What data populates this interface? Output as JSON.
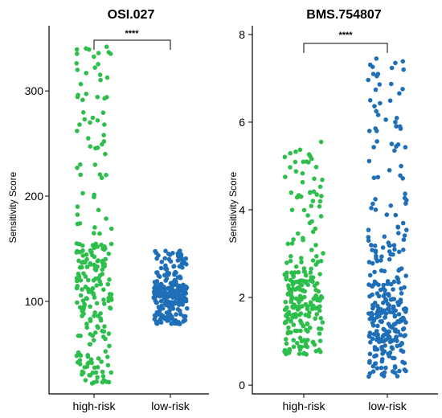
{
  "colors": {
    "high_risk": "#2DBE4B",
    "low_risk": "#1F6FB8"
  },
  "chart_data": [
    {
      "type": "scatter",
      "title": "OSI.027",
      "ylabel": "Sensitivity Score",
      "xlabel": "",
      "categories": [
        "high-risk",
        "low-risk"
      ],
      "ylim": [
        12,
        362
      ],
      "yticks": [
        100,
        200,
        300
      ],
      "yticklabels": [
        "100",
        "200",
        "300"
      ],
      "grid": false,
      "legend": "none",
      "significance": "****",
      "series": [
        {
          "category": "high-risk",
          "color": "#2DBE4B",
          "n": 240,
          "summary": {
            "min": 22,
            "q1": 85,
            "median": 120,
            "q3": 155,
            "max": 342
          },
          "notable": [
            342,
            272,
            268,
            262,
            258,
            252,
            246,
            240,
            230,
            25,
            22
          ]
        },
        {
          "category": "low-risk",
          "color": "#1F6FB8",
          "n": 260,
          "summary": {
            "min": 78,
            "q1": 98,
            "median": 107,
            "q3": 116,
            "max": 148
          },
          "notable": [
            148,
            146,
            140
          ]
        }
      ]
    },
    {
      "type": "scatter",
      "title": "BMS.754807",
      "ylabel": "Sensitivity Score",
      "xlabel": "",
      "categories": [
        "high-risk",
        "low-risk"
      ],
      "ylim": [
        -0.2,
        8.2
      ],
      "yticks": [
        0,
        2,
        4,
        6,
        8
      ],
      "yticklabels": [
        "0",
        "2",
        "4",
        "6",
        "8"
      ],
      "grid": false,
      "legend": "none",
      "significance": "****",
      "series": [
        {
          "category": "high-risk",
          "color": "#2DBE4B",
          "n": 240,
          "summary": {
            "min": 0.7,
            "q1": 1.6,
            "median": 2.1,
            "q3": 2.6,
            "max": 5.55
          },
          "notable": [
            5.55,
            4.75,
            4.4,
            4.3,
            4.2,
            3.7
          ]
        },
        {
          "category": "low-risk",
          "color": "#1F6FB8",
          "n": 300,
          "summary": {
            "min": 0.15,
            "q1": 1.1,
            "median": 1.8,
            "q3": 3.2,
            "max": 7.45
          },
          "notable": [
            7.45,
            7.35,
            7.1,
            7.1,
            6.25,
            5.9,
            5.85,
            5.8
          ]
        }
      ]
    }
  ]
}
